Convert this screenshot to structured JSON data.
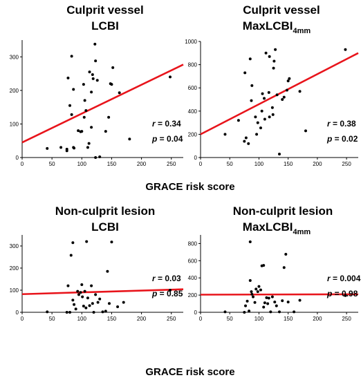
{
  "x_axis_label_top": "GRACE risk score",
  "x_axis_label_bottom": "GRACE risk score",
  "chart_data": [
    {
      "type": "scatter",
      "title": "Culprit vessel",
      "subtitle": "LCBI",
      "xlabel": "GRACE risk score",
      "xlim": [
        0,
        270
      ],
      "ylim": [
        0,
        350
      ],
      "xticks": [
        0,
        50,
        100,
        150,
        200,
        250
      ],
      "yticks": [
        0,
        100,
        200,
        300
      ],
      "r_text": "r",
      "r_value": "= 0.34",
      "p_text": "p",
      "p_value": "= 0.04",
      "fit": {
        "x": [
          0,
          270
        ],
        "y": [
          45,
          277
        ]
      },
      "line_color": "#e8141b",
      "points": [
        [
          42,
          27
        ],
        [
          65,
          30
        ],
        [
          75,
          25
        ],
        [
          75,
          20
        ],
        [
          77,
          237
        ],
        [
          80,
          155
        ],
        [
          83,
          302
        ],
        [
          83,
          128
        ],
        [
          86,
          203
        ],
        [
          86,
          30
        ],
        [
          87,
          28
        ],
        [
          94,
          80
        ],
        [
          98,
          77
        ],
        [
          100,
          78
        ],
        [
          103,
          218
        ],
        [
          104,
          120
        ],
        [
          105,
          170
        ],
        [
          107,
          140
        ],
        [
          110,
          30
        ],
        [
          112,
          42
        ],
        [
          113,
          255
        ],
        [
          116,
          90
        ],
        [
          116,
          195
        ],
        [
          118,
          247
        ],
        [
          119,
          235
        ],
        [
          122,
          338
        ],
        [
          123,
          288
        ],
        [
          123,
          0
        ],
        [
          126,
          230
        ],
        [
          130,
          2
        ],
        [
          140,
          78
        ],
        [
          145,
          120
        ],
        [
          148,
          220
        ],
        [
          150,
          218
        ],
        [
          152,
          268
        ],
        [
          163,
          193
        ],
        [
          180,
          55
        ],
        [
          248,
          240
        ]
      ]
    },
    {
      "type": "scatter",
      "title": "Culprit vessel",
      "subtitle": "MaxLCBI",
      "subtitle_sub": "4mm",
      "xlabel": "GRACE risk score",
      "xlim": [
        0,
        270
      ],
      "ylim": [
        0,
        1000
      ],
      "xticks": [
        0,
        50,
        100,
        150,
        200,
        250
      ],
      "yticks": [
        0,
        200,
        400,
        600,
        800,
        1000
      ],
      "r_text": "r",
      "r_value": "= 0.38",
      "p_text": "p",
      "p_value": "= 0.02",
      "fit": {
        "x": [
          0,
          270
        ],
        "y": [
          200,
          900
        ]
      },
      "line_color": "#e8141b",
      "points": [
        [
          42,
          200
        ],
        [
          65,
          320
        ],
        [
          75,
          140
        ],
        [
          76,
          730
        ],
        [
          78,
          170
        ],
        [
          82,
          120
        ],
        [
          85,
          850
        ],
        [
          87,
          490
        ],
        [
          88,
          620
        ],
        [
          94,
          350
        ],
        [
          96,
          200
        ],
        [
          98,
          300
        ],
        [
          103,
          255
        ],
        [
          105,
          400
        ],
        [
          106,
          550
        ],
        [
          109,
          510
        ],
        [
          110,
          330
        ],
        [
          112,
          900
        ],
        [
          117,
          560
        ],
        [
          118,
          350
        ],
        [
          118,
          870
        ],
        [
          123,
          430
        ],
        [
          124,
          370
        ],
        [
          125,
          770
        ],
        [
          126,
          830
        ],
        [
          128,
          930
        ],
        [
          131,
          540
        ],
        [
          135,
          30
        ],
        [
          140,
          500
        ],
        [
          143,
          520
        ],
        [
          148,
          580
        ],
        [
          150,
          660
        ],
        [
          152,
          680
        ],
        [
          170,
          570
        ],
        [
          180,
          230
        ],
        [
          248,
          930
        ]
      ]
    },
    {
      "type": "scatter",
      "title": "Non-culprit lesion",
      "subtitle": "LCBI",
      "xlabel": "GRACE risk score",
      "xlim": [
        0,
        270
      ],
      "ylim": [
        0,
        350
      ],
      "xticks": [
        0,
        50,
        100,
        150,
        200,
        250
      ],
      "yticks": [
        0,
        100,
        200,
        300
      ],
      "r_text": "r",
      "r_value": "= 0.03",
      "p_text": "p",
      "p_value": "= 0.85",
      "fit": {
        "x": [
          0,
          270
        ],
        "y": [
          82,
          104
        ]
      },
      "line_color": "#e8141b",
      "points": [
        [
          42,
          2
        ],
        [
          75,
          0
        ],
        [
          77,
          120
        ],
        [
          80,
          0
        ],
        [
          82,
          258
        ],
        [
          85,
          315
        ],
        [
          85,
          55
        ],
        [
          87,
          35
        ],
        [
          90,
          15
        ],
        [
          93,
          95
        ],
        [
          95,
          80
        ],
        [
          98,
          90
        ],
        [
          100,
          125
        ],
        [
          101,
          70
        ],
        [
          103,
          28
        ],
        [
          105,
          95
        ],
        [
          107,
          20
        ],
        [
          108,
          320
        ],
        [
          110,
          65
        ],
        [
          113,
          30
        ],
        [
          116,
          120
        ],
        [
          118,
          40
        ],
        [
          120,
          0
        ],
        [
          123,
          80
        ],
        [
          127,
          45
        ],
        [
          130,
          60
        ],
        [
          135,
          2
        ],
        [
          140,
          5
        ],
        [
          143,
          185
        ],
        [
          146,
          40
        ],
        [
          150,
          318
        ],
        [
          160,
          25
        ],
        [
          170,
          45
        ],
        [
          248,
          100
        ]
      ]
    },
    {
      "type": "scatter",
      "title": "Non-culprit lesion",
      "subtitle": "MaxLCBI",
      "subtitle_sub": "4mm",
      "xlabel": "GRACE risk score",
      "xlim": [
        0,
        270
      ],
      "ylim": [
        0,
        900
      ],
      "xticks": [
        0,
        50,
        100,
        150,
        200,
        250
      ],
      "yticks": [
        0,
        200,
        400,
        600,
        800
      ],
      "r_text": "r",
      "r_value": "= 0.004",
      "p_text": "p",
      "p_value": "= 0.98",
      "fit": {
        "x": [
          0,
          270
        ],
        "y": [
          205,
          210
        ]
      },
      "line_color": "#e8141b",
      "points": [
        [
          42,
          5
        ],
        [
          75,
          0
        ],
        [
          77,
          75
        ],
        [
          80,
          130
        ],
        [
          83,
          15
        ],
        [
          85,
          370
        ],
        [
          85,
          820
        ],
        [
          87,
          240
        ],
        [
          88,
          210
        ],
        [
          90,
          180
        ],
        [
          93,
          115
        ],
        [
          95,
          270
        ],
        [
          98,
          240
        ],
        [
          100,
          300
        ],
        [
          103,
          260
        ],
        [
          105,
          540
        ],
        [
          108,
          545
        ],
        [
          108,
          60
        ],
        [
          110,
          110
        ],
        [
          113,
          170
        ],
        [
          115,
          100
        ],
        [
          117,
          165
        ],
        [
          120,
          5
        ],
        [
          123,
          180
        ],
        [
          127,
          120
        ],
        [
          130,
          75
        ],
        [
          135,
          5
        ],
        [
          140,
          135
        ],
        [
          143,
          520
        ],
        [
          146,
          675
        ],
        [
          150,
          120
        ],
        [
          160,
          5
        ],
        [
          170,
          140
        ],
        [
          248,
          195
        ]
      ]
    }
  ]
}
